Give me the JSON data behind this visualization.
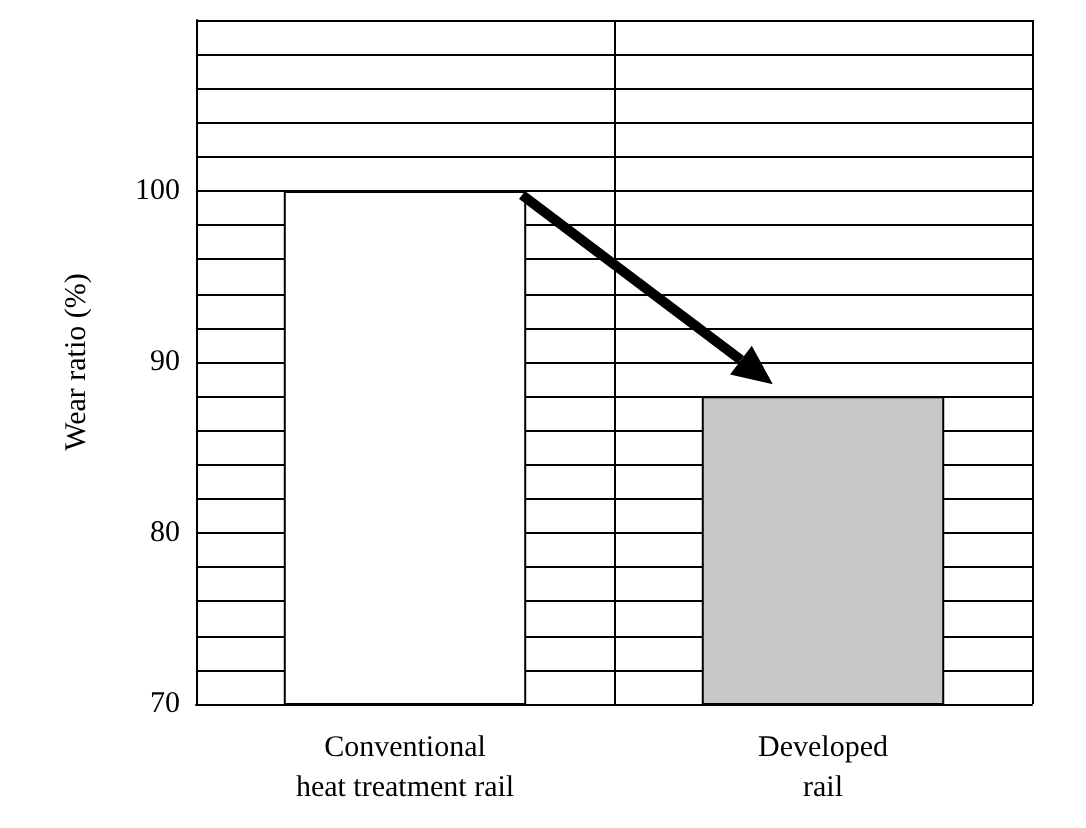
{
  "chart_data": {
    "type": "bar",
    "categories": [
      "Conventional\nheat treatment rail",
      "Developed\nrail"
    ],
    "values": [
      100,
      88
    ],
    "colors": [
      "#ffffff",
      "#c8c8c8"
    ],
    "ylabel": "Wear ratio (%)",
    "ylim": [
      70,
      110
    ],
    "yticks": [
      70,
      {
        "value": 72,
        "label": null
      },
      {
        "value": 74,
        "label": null
      },
      {
        "value": 76,
        "label": null
      },
      {
        "value": 78,
        "label": null
      },
      80,
      {
        "value": 82,
        "label": null
      },
      {
        "value": 84,
        "label": null
      },
      {
        "value": 86,
        "label": null
      },
      {
        "value": 88,
        "label": null
      },
      90,
      {
        "value": 92,
        "label": null
      },
      {
        "value": 94,
        "label": null
      },
      {
        "value": 96,
        "label": null
      },
      {
        "value": 98,
        "label": null
      },
      100,
      {
        "value": 102,
        "label": null
      },
      {
        "value": 104,
        "label": null
      },
      {
        "value": 106,
        "label": null
      },
      {
        "value": 108,
        "label": null
      },
      {
        "value": 110,
        "label": null
      }
    ],
    "grid": true
  }
}
